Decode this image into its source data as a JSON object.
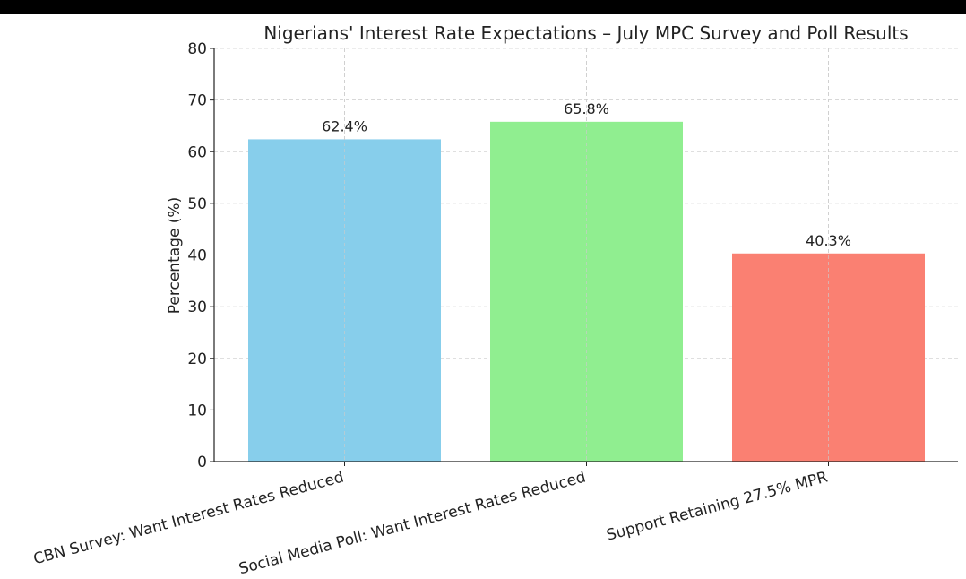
{
  "chart_data": {
    "type": "bar",
    "title": "Nigerians' Interest Rate Expectations – July MPC Survey and Poll Results",
    "xlabel": "",
    "ylabel": "Percentage (%)",
    "ylim": [
      0,
      80
    ],
    "yticks": [
      0,
      10,
      20,
      30,
      40,
      50,
      60,
      70,
      80
    ],
    "categories": [
      "CBN Survey: Want Interest Rates Reduced",
      "Social Media Poll: Want Interest Rates Reduced",
      "Support Retaining 27.5% MPR"
    ],
    "values": [
      62.4,
      65.8,
      40.3
    ],
    "data_labels": [
      "62.4%",
      "65.8%",
      "40.3%"
    ],
    "colors": [
      "#87CEEB",
      "#90EE90",
      "#FA8072"
    ],
    "grid": true,
    "legend": "none"
  }
}
